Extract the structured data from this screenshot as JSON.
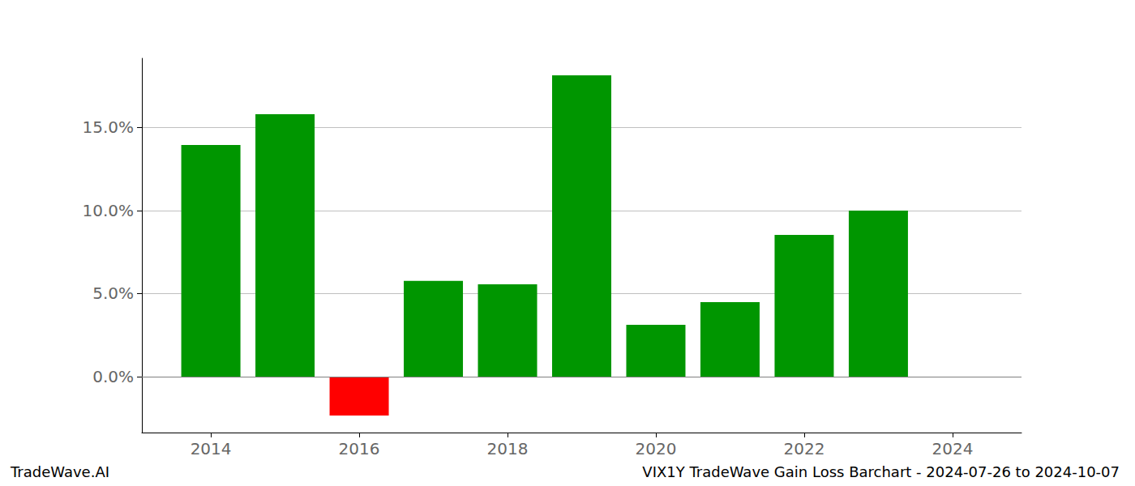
{
  "chart_data": {
    "type": "bar",
    "title": "VIX1Y TradeWave Gain Loss Barchart - 2024-07-26 to 2024-10-07",
    "annotations": [
      "TradeWave.AI"
    ],
    "x": [
      2014,
      2015,
      2016,
      2017,
      2018,
      2019,
      2020,
      2021,
      2022,
      2023
    ],
    "values": [
      13.95,
      15.8,
      -2.34,
      5.76,
      5.56,
      18.15,
      3.12,
      4.49,
      8.54,
      10.0
    ],
    "colors": [
      "#009600",
      "#009600",
      "#ff0000",
      "#009600",
      "#009600",
      "#009600",
      "#009600",
      "#009600",
      "#009600",
      "#009600"
    ],
    "xlim": [
      2013.07,
      2024.93
    ],
    "xticks": [
      2014,
      2016,
      2018,
      2020,
      2022,
      2024
    ],
    "ylim": [
      -3.37,
      19.17
    ],
    "yticks": [
      {
        "value": 0,
        "label": "0.0%"
      },
      {
        "value": 5,
        "label": "5.0%"
      },
      {
        "value": 10,
        "label": "10.0%"
      },
      {
        "value": 15,
        "label": "15.0%"
      }
    ],
    "grid": true
  }
}
